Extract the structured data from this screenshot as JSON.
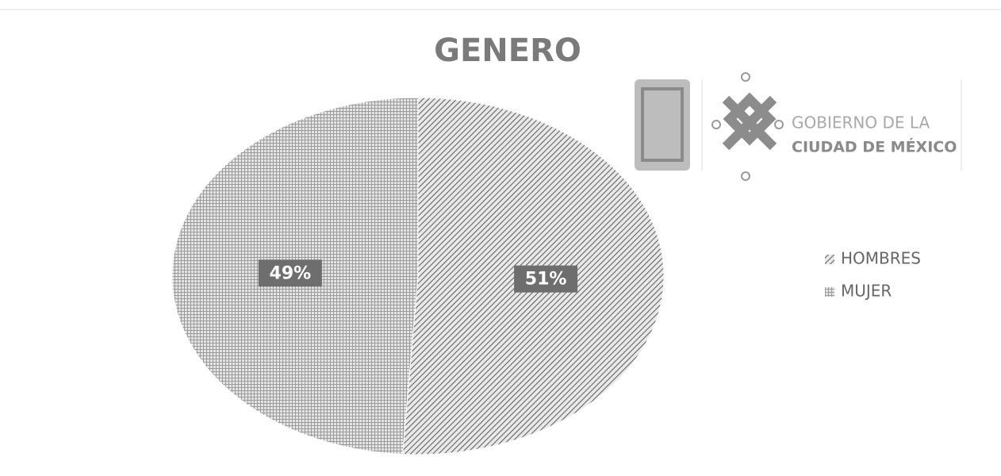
{
  "chart_data": {
    "type": "pie",
    "title": "GENERO",
    "categories": [
      "HOMBRES",
      "MUJER"
    ],
    "values": [
      51,
      49
    ],
    "value_labels": [
      "51%",
      "49%"
    ],
    "colors": [
      "#5a5a5a",
      "#9a9a9a"
    ],
    "legend": "right",
    "annotations": [
      "GOBIERNO DE LA",
      "CIUDAD DE MÉXICO"
    ]
  }
}
